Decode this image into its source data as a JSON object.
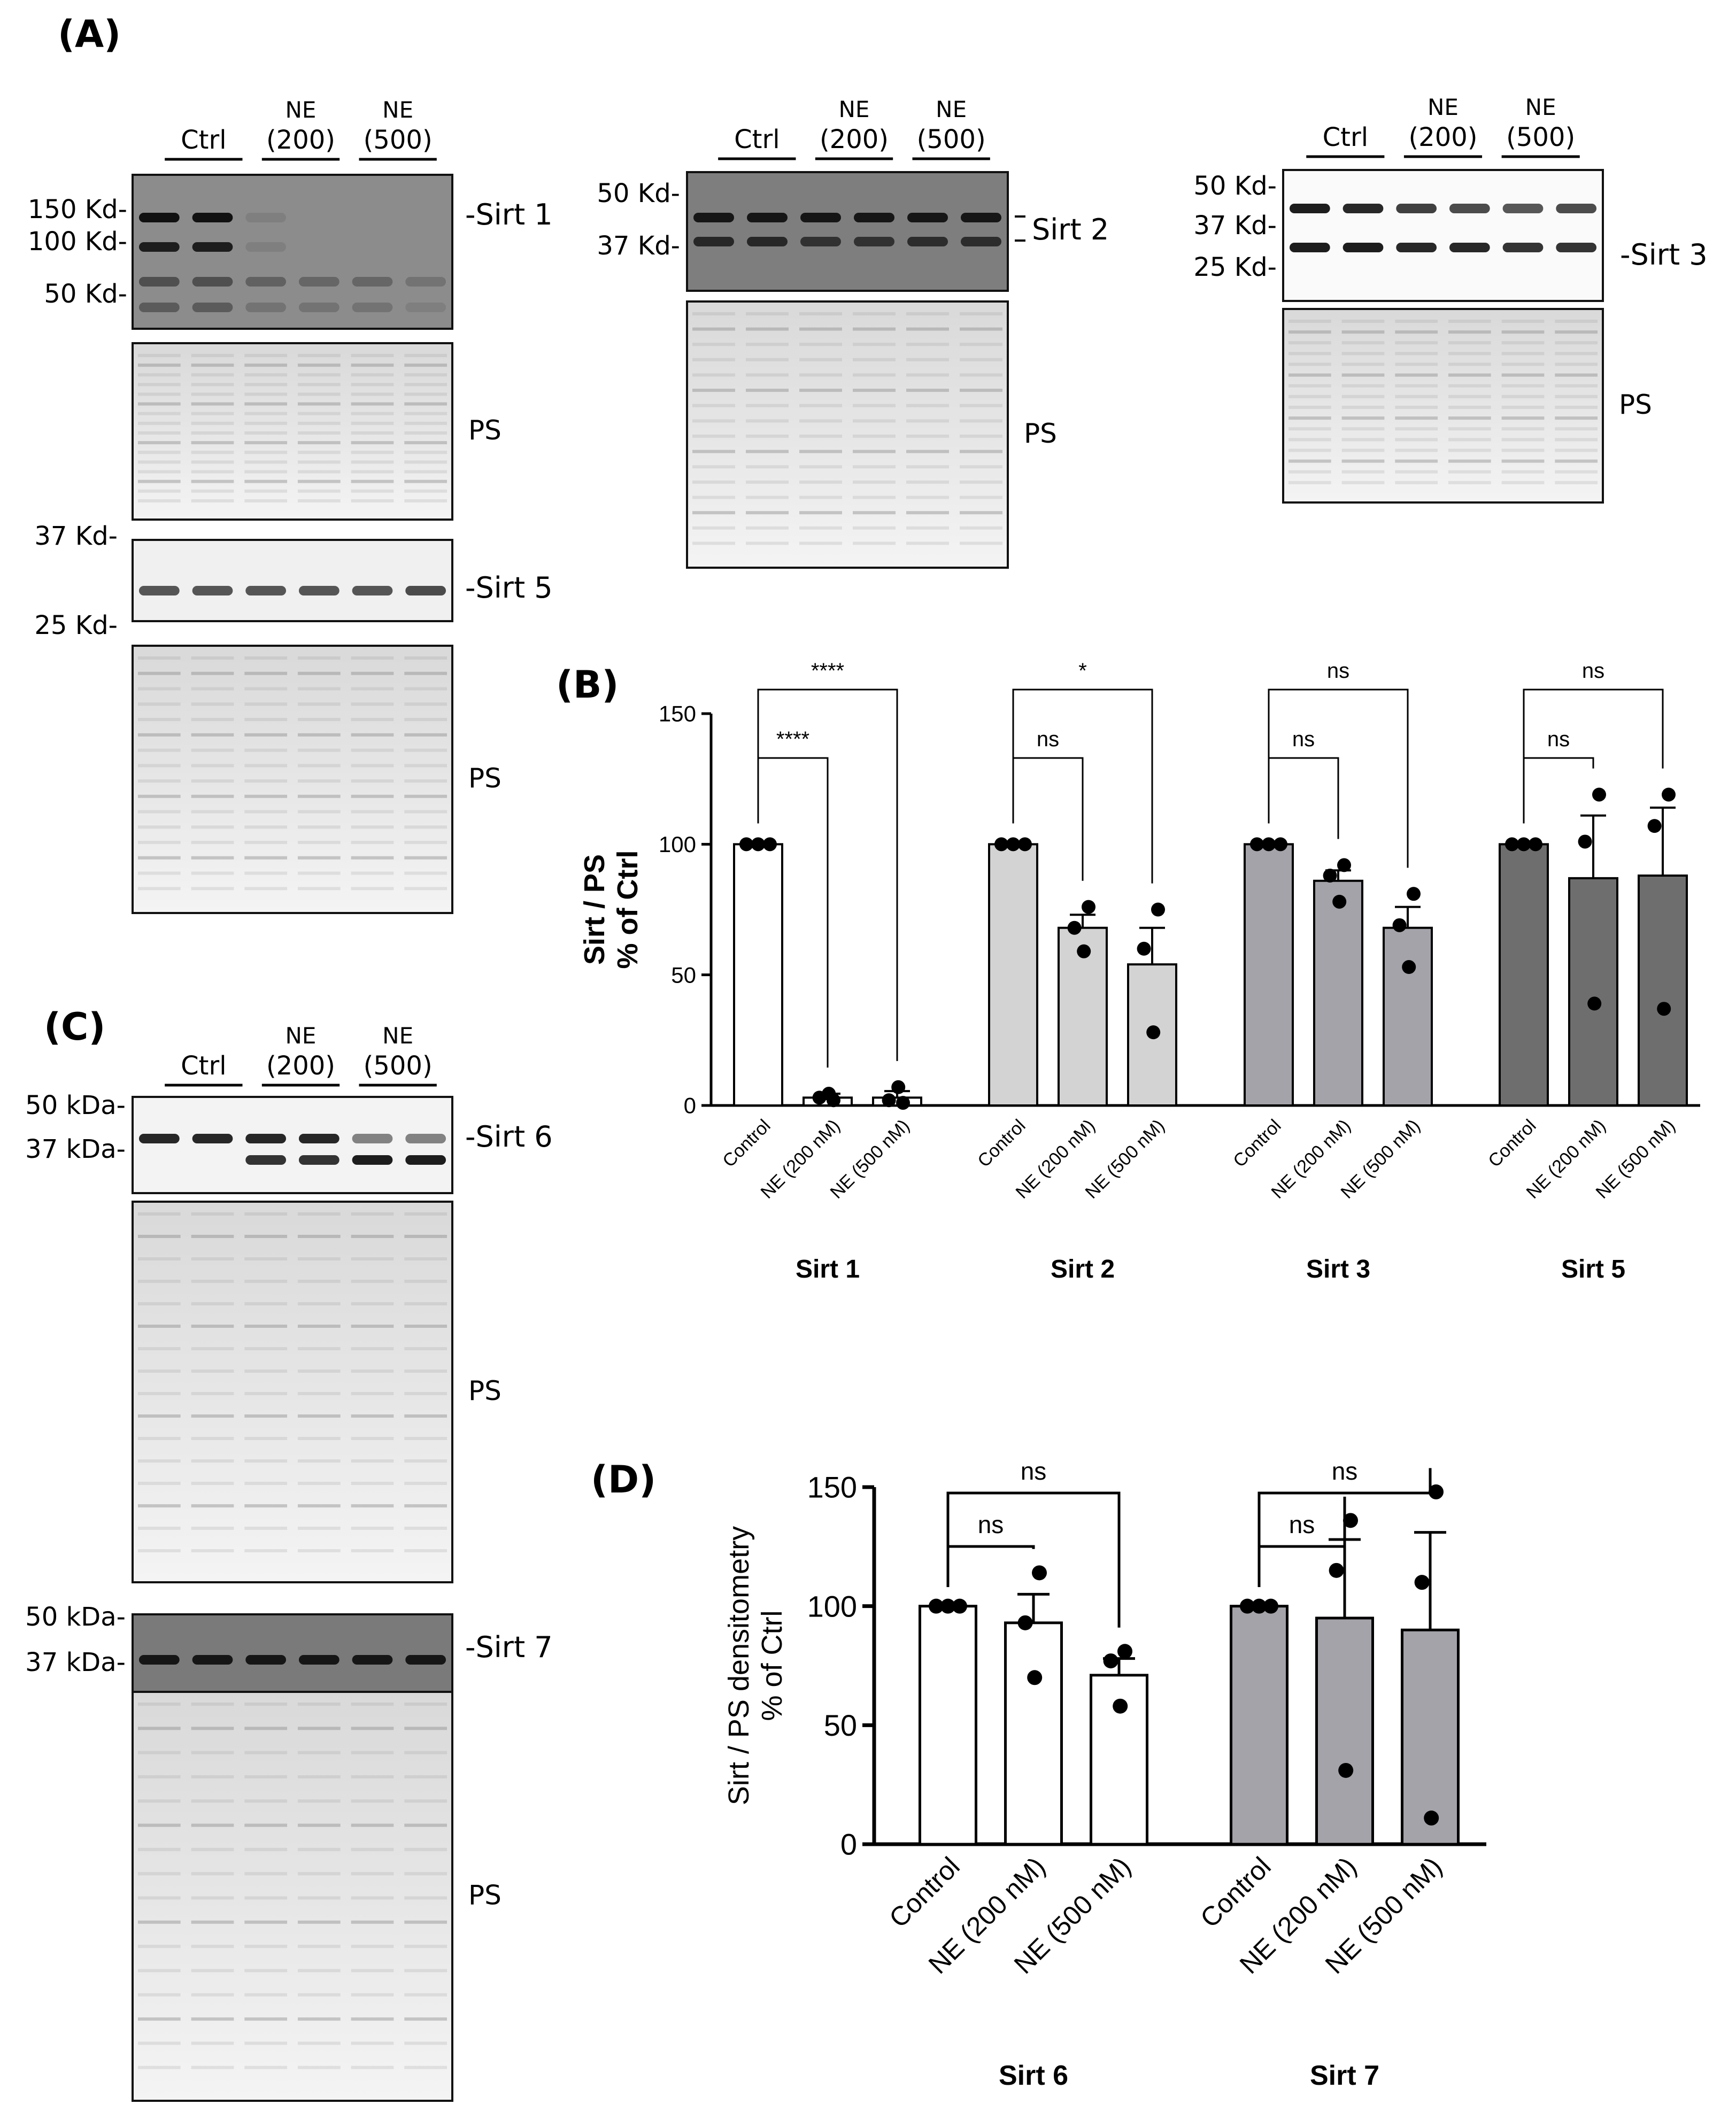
{
  "panel_labels": {
    "A": "(A)",
    "B": "(B)",
    "C": "(C)",
    "D": "(D)"
  },
  "lane_groups": {
    "ctrl": "Ctrl",
    "ne": "NE",
    "c200": "(200)",
    "c500": "(500)"
  },
  "ps_label": "PS",
  "blots": {
    "sirt1": {
      "label": "-Sirt 1",
      "markers": [
        "150 Kd-",
        "100 Kd-",
        "50 Kd-"
      ]
    },
    "sirt5": {
      "label": "-Sirt 5",
      "markers": [
        "37 Kd-",
        "25 Kd-"
      ]
    },
    "sirt2": {
      "label": "Sirt 2",
      "markers": [
        "50 Kd-",
        "37 Kd-"
      ]
    },
    "sirt3": {
      "label": "-Sirt 3",
      "markers": [
        "50 Kd-",
        "37 Kd-",
        "25 Kd-"
      ]
    },
    "sirt6": {
      "label": "-Sirt 6",
      "markers": [
        "50 kDa-",
        "37 kDa-"
      ]
    },
    "sirt7": {
      "label": "-Sirt 7",
      "markers": [
        "50 kDa-",
        "37 kDa-"
      ]
    }
  },
  "colors": {
    "white_bar": "#ffffff",
    "light_bar": "#d3d3d3",
    "mid_bar": "#a3a3a9",
    "dark_bar": "#6e6e6e"
  },
  "chart_data": [
    {
      "type": "bar",
      "panel": "B",
      "ylabel_lines": [
        "Sirt / PS",
        "% of Ctrl"
      ],
      "ylim": [
        0,
        150
      ],
      "yticks": [
        "0",
        "50",
        "100",
        "150"
      ],
      "categories": [
        "Control",
        "NE (200 nM)",
        "NE (500 nM)"
      ],
      "groups": [
        {
          "name": "Sirt 1",
          "color": "#ffffff",
          "means": [
            100,
            3,
            3
          ],
          "sem": [
            0,
            1.5,
            2.5
          ],
          "points": [
            [
              100,
              100,
              100
            ],
            [
              2,
              3,
              4.5
            ],
            [
              1,
              2,
              7
            ]
          ],
          "sig": [
            {
              "label": "****",
              "to": 1
            },
            {
              "label": "****",
              "to": 2
            }
          ]
        },
        {
          "name": "Sirt 2",
          "color": "#d3d3d3",
          "means": [
            100,
            68,
            54
          ],
          "sem": [
            0,
            5,
            14
          ],
          "points": [
            [
              100,
              100,
              100
            ],
            [
              76,
              68,
              59
            ],
            [
              75,
              60,
              28
            ]
          ],
          "sig": [
            {
              "label": "ns",
              "to": 1
            },
            {
              "label": "*",
              "to": 2
            }
          ]
        },
        {
          "name": "Sirt 3",
          "color": "#a3a3a9",
          "means": [
            100,
            86,
            68
          ],
          "sem": [
            0,
            4,
            8
          ],
          "points": [
            [
              100,
              100,
              100
            ],
            [
              92,
              88,
              78
            ],
            [
              81,
              69,
              53
            ]
          ],
          "sig": [
            {
              "label": "ns",
              "to": 1
            },
            {
              "label": "ns",
              "to": 2
            }
          ]
        },
        {
          "name": "Sirt 5",
          "color": "#6e6e6e",
          "means": [
            100,
            87,
            88
          ],
          "sem": [
            0,
            24,
            26
          ],
          "points": [
            [
              100,
              100,
              100
            ],
            [
              119,
              101,
              39
            ],
            [
              119,
              107,
              37
            ]
          ],
          "sig": [
            {
              "label": "ns",
              "to": 1
            },
            {
              "label": "ns",
              "to": 2
            }
          ]
        }
      ]
    },
    {
      "type": "bar",
      "panel": "D",
      "ylabel_lines": [
        "Sirt / PS densitometry",
        "% of Ctrl"
      ],
      "ylim": [
        0,
        150
      ],
      "yticks": [
        "0",
        "50",
        "100",
        "150"
      ],
      "categories": [
        "Control",
        "NE (200 nM)",
        "NE (500 nM)"
      ],
      "groups": [
        {
          "name": "Sirt 6",
          "color": "#ffffff",
          "means": [
            100,
            93,
            71
          ],
          "sem": [
            0,
            12,
            7
          ],
          "points": [
            [
              100,
              100,
              100
            ],
            [
              114,
              93,
              70
            ],
            [
              81,
              77,
              58
            ]
          ],
          "sig": [
            {
              "label": "ns",
              "to": 1
            },
            {
              "label": "ns",
              "to": 2
            }
          ]
        },
        {
          "name": "Sirt 7",
          "color": "#a3a3a9",
          "means": [
            100,
            95,
            90
          ],
          "sem": [
            0,
            33,
            41
          ],
          "points": [
            [
              100,
              100,
              100
            ],
            [
              136,
              115,
              31
            ],
            [
              148,
              110,
              11
            ]
          ],
          "sig": [
            {
              "label": "ns",
              "to": 1
            },
            {
              "label": "ns",
              "to": 2
            }
          ]
        }
      ]
    }
  ]
}
